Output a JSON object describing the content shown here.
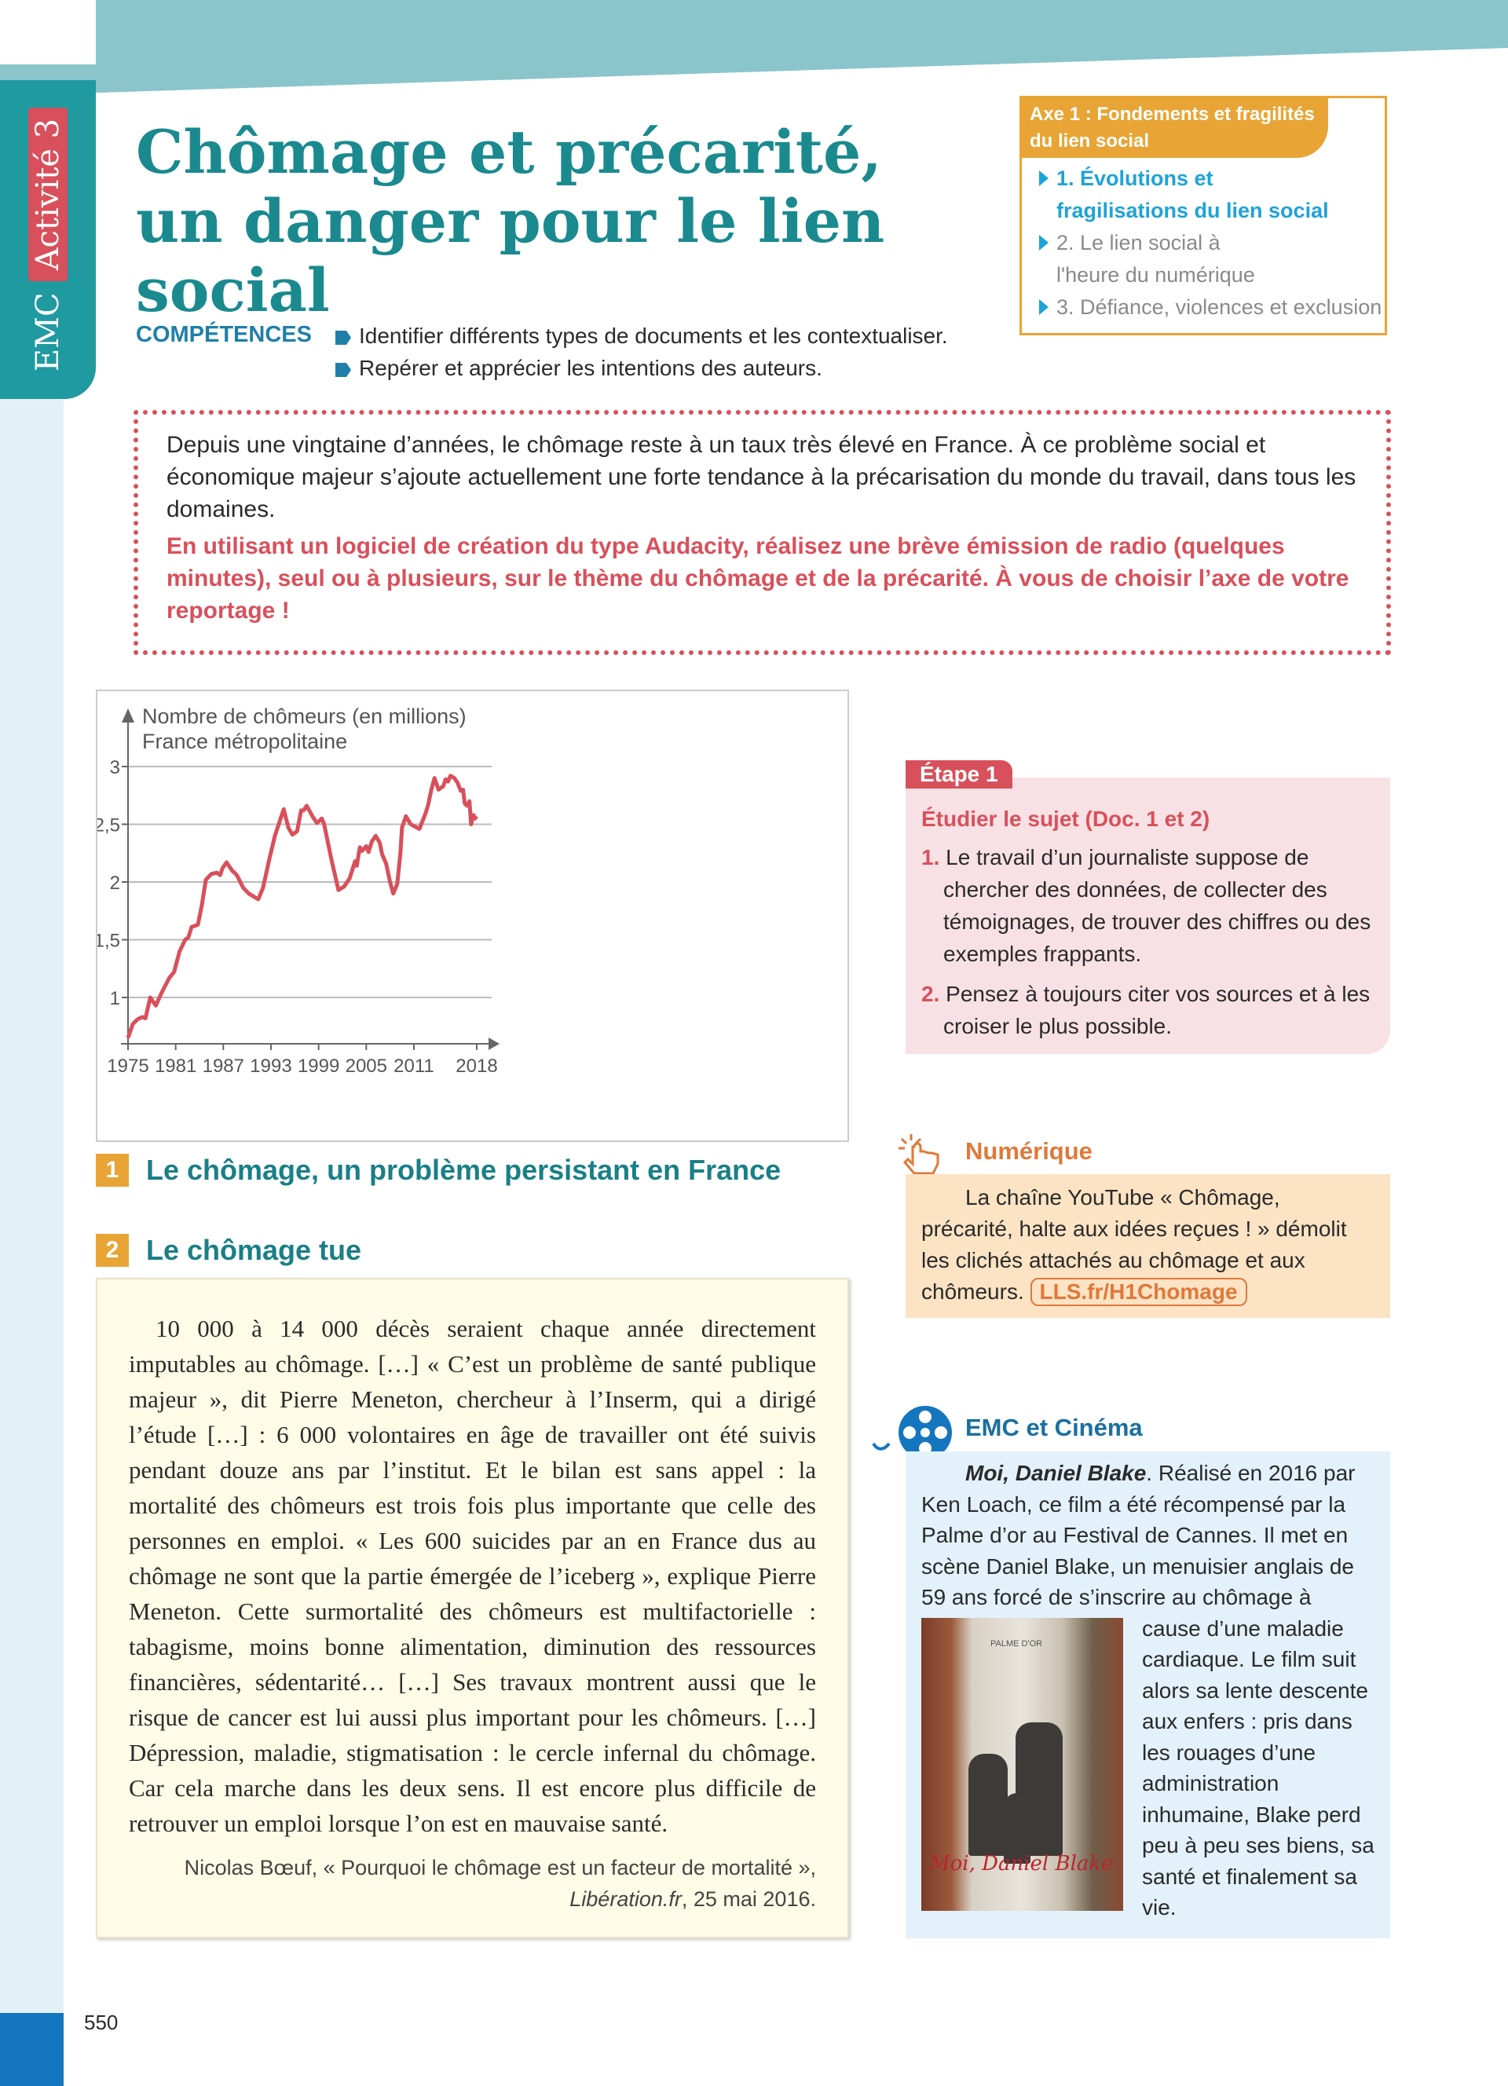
{
  "sidebar": {
    "subject": "EMC",
    "activity": "Activité 3"
  },
  "title": "Chômage et précarité, un danger pour le lien social",
  "axe": {
    "header": "Axe 1 : Fondements et fragilités du lien social",
    "items": [
      {
        "label": "1. Évolutions et fragilisations du lien social",
        "active": true
      },
      {
        "label": "2. Le lien social à l'heure du numérique",
        "active": false
      },
      {
        "label": "3. Défiance, violences et exclusion",
        "active": false
      }
    ]
  },
  "competences": {
    "label": "COMPÉTENCES",
    "items": [
      "Identifier différents types de documents et les contextualiser.",
      "Repérer et apprécier les intentions des auteurs."
    ]
  },
  "intro": {
    "text": "Depuis une vingtaine d’années, le chômage reste à un taux très élevé en France. À ce problème social et économique majeur s’ajoute actuellement une forte tendance à la précarisation du monde du travail, dans tous les domaines.",
    "task": "En utilisant un logiciel de création du type Audacity, réalisez une brève émission de radio (quelques minutes), seul ou à plusieurs, sur le thème du chômage et de la précarité. À vous de choisir l’axe de votre reportage !"
  },
  "chart_data": {
    "type": "line",
    "title": "Nombre de chômeurs (en millions)",
    "subtitle": "France métropolitaine",
    "xlabel": "",
    "ylabel": "",
    "x_ticks": [
      "1975",
      "1981",
      "1987",
      "1993",
      "1999",
      "2005",
      "2011",
      "2018"
    ],
    "y_ticks": [
      "1",
      "1,5",
      "2",
      "2,5",
      "3"
    ],
    "ylim": [
      0.6,
      3.3
    ],
    "grid": true,
    "color": "#d8505b",
    "series": [
      {
        "points": [
          [
            1975,
            0.65
          ],
          [
            1975.6,
            0.77
          ],
          [
            1976.2,
            0.81
          ],
          [
            1976.8,
            0.83
          ],
          [
            1977.2,
            0.82
          ],
          [
            1977.8,
            1.0
          ],
          [
            1978.5,
            0.93
          ],
          [
            1979.3,
            1.05
          ],
          [
            1980.2,
            1.17
          ],
          [
            1980.8,
            1.22
          ],
          [
            1981.5,
            1.4
          ],
          [
            1982.2,
            1.5
          ],
          [
            1982.6,
            1.52
          ],
          [
            1983,
            1.61
          ],
          [
            1983.8,
            1.63
          ],
          [
            1984.3,
            1.8
          ],
          [
            1984.8,
            2.02
          ],
          [
            1985.5,
            2.07
          ],
          [
            1986.2,
            2.08
          ],
          [
            1986.6,
            2.06
          ],
          [
            1986.9,
            2.12
          ],
          [
            1987.4,
            2.17
          ],
          [
            1988.1,
            2.1
          ],
          [
            1988.7,
            2.06
          ],
          [
            1989.5,
            1.95
          ],
          [
            1990.2,
            1.9
          ],
          [
            1991.4,
            1.85
          ],
          [
            1992,
            1.95
          ],
          [
            1992.8,
            2.2
          ],
          [
            1993.5,
            2.4
          ],
          [
            1994.6,
            2.63
          ],
          [
            1995.2,
            2.47
          ],
          [
            1995.7,
            2.41
          ],
          [
            1996.3,
            2.44
          ],
          [
            1996.8,
            2.62
          ],
          [
            1997.1,
            2.62
          ],
          [
            1997.5,
            2.66
          ],
          [
            1998.3,
            2.56
          ],
          [
            1998.8,
            2.51
          ],
          [
            1999.4,
            2.55
          ],
          [
            1999.7,
            2.5
          ],
          [
            2000.6,
            2.2
          ],
          [
            2001.5,
            1.93
          ],
          [
            2002.2,
            1.96
          ],
          [
            2002.9,
            2.03
          ],
          [
            2003.6,
            2.18
          ],
          [
            2003.8,
            2.14
          ],
          [
            2004.2,
            2.3
          ],
          [
            2004.5,
            2.27
          ],
          [
            2005,
            2.31
          ],
          [
            2005.3,
            2.26
          ],
          [
            2005.7,
            2.35
          ],
          [
            2006.2,
            2.4
          ],
          [
            2006.7,
            2.34
          ],
          [
            2007,
            2.24
          ],
          [
            2007.5,
            2.16
          ],
          [
            2008,
            2.0
          ],
          [
            2008.4,
            1.9
          ],
          [
            2008.9,
            1.98
          ],
          [
            2009.3,
            2.25
          ],
          [
            2009.5,
            2.47
          ],
          [
            2010,
            2.57
          ],
          [
            2010.6,
            2.5
          ],
          [
            2011.7,
            2.46
          ],
          [
            2012.5,
            2.6
          ],
          [
            2012.8,
            2.67
          ],
          [
            2013.2,
            2.8
          ],
          [
            2013.6,
            2.9
          ],
          [
            2014.1,
            2.8
          ],
          [
            2014.7,
            2.83
          ],
          [
            2015,
            2.89
          ],
          [
            2015.3,
            2.87
          ],
          [
            2015.6,
            2.92
          ],
          [
            2016.1,
            2.9
          ],
          [
            2016.5,
            2.86
          ],
          [
            2016.9,
            2.79
          ],
          [
            2017.2,
            2.8
          ],
          [
            2017.4,
            2.68
          ],
          [
            2017.7,
            2.66
          ],
          [
            2018,
            2.7
          ],
          [
            2018.2,
            2.5
          ],
          [
            2018.5,
            2.58
          ],
          [
            2018.7,
            2.55
          ],
          [
            2018.9,
            2.57
          ]
        ]
      }
    ]
  },
  "doc1": {
    "number": "1",
    "title": "Le chômage, un problème persistant en France"
  },
  "doc2": {
    "number": "2",
    "title": "Le chômage tue",
    "text": "10 000 à 14 000 décès seraient chaque année directement imputables au chômage. […] « C’est un problème de santé publique majeur », dit Pierre Meneton, chercheur à l’Inserm, qui a dirigé l’étude […] : 6 000 volontaires en âge de travailler ont été suivis pendant douze ans par l’institut. Et le bilan est sans appel : la mortalité des chômeurs est trois fois plus importante que celle des personnes en emploi. « Les 600 suicides par an en France dus au chômage ne sont que la partie émergée de l’iceberg », explique Pierre Meneton. Cette surmortalité des chômeurs est multifactorielle : tabagisme, moins bonne alimentation, diminution des ressources financières, sédentarité… […] Ses travaux montrent aussi que le risque de cancer est lui aussi plus important pour les chômeurs. […] Dépression, maladie, stigmatisation : le cercle infernal du chômage. Car cela marche dans les deux sens. Il est encore plus difficile de retrouver un emploi lorsque l’on est en mauvaise santé.",
    "source": "Nicolas Bœuf, « Pourquoi le chômage est un facteur de mortalité »,",
    "source_pub": "Libération.fr",
    "source_date": ", 25 mai 2016."
  },
  "etape": {
    "tag": "Étape 1",
    "subtitle": "Étudier le sujet (Doc. 1 et 2)",
    "items": [
      {
        "n": "1.",
        "text": "Le travail d’un journaliste suppose de chercher des données, de collecter des témoignages, de trouver des chiffres ou des exemples frappants."
      },
      {
        "n": "2.",
        "text": "Pensez à toujours citer vos sources et à les croiser le plus possible."
      }
    ]
  },
  "numerique": {
    "title": "Numérique",
    "text": "La chaîne YouTube « Chômage, précarité, halte aux idées reçues ! » démolit les clichés attachés au chômage et aux chômeurs.",
    "link": "LLS.fr/H1Chomage"
  },
  "cinema": {
    "title": "EMC et Cinéma",
    "film": "Moi, Daniel Blake",
    "text": ". Réalisé en 2016 par Ken Loach, ce film a été récompensé par la Palme d’or au Festival de Cannes. Il met en scène Daniel Blake, un menuisier anglais de 59 ans forcé de s’inscrire au chômage à cause d’une maladie cardiaque. Le film suit alors sa lente descente aux enfers : pris dans les rouages d’une administration inhumaine, Blake perd peu à peu ses biens, sa santé et finalement sa vie.",
    "poster_logo": "Moi, Daniel Blake",
    "poster_award": "PALME D'OR"
  },
  "page_number": "550"
}
